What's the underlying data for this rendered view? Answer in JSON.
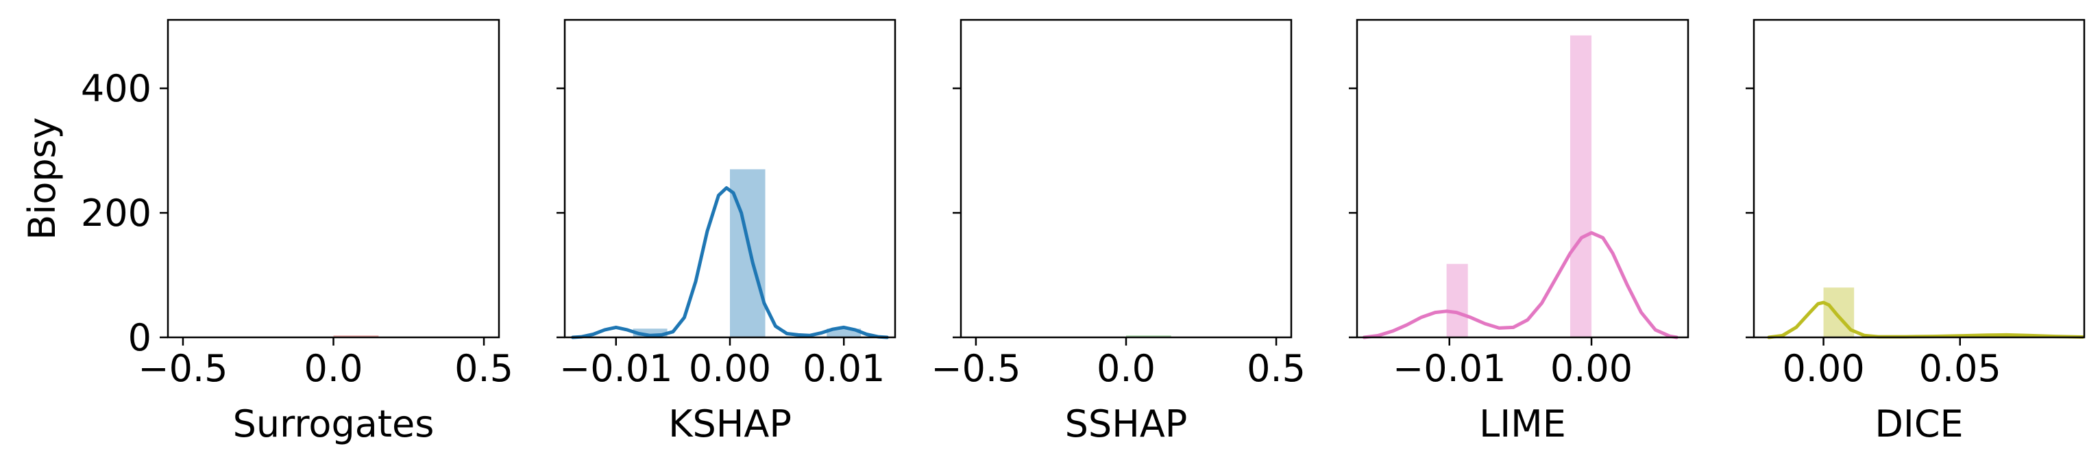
{
  "chart_data": [
    {
      "type": "histogram",
      "xlabel": "Surrogates",
      "ylabel": "Biopsy",
      "xlim": [
        -0.55,
        0.55
      ],
      "ylim": [
        0,
        510
      ],
      "xticks": [
        -0.5,
        0.0,
        0.5
      ],
      "xtick_labels": [
        "−0.5",
        "0.0",
        "0.5"
      ],
      "yticks": [
        0,
        200,
        400
      ],
      "ytick_labels": [
        "0",
        "200",
        "400"
      ],
      "color": "#d62728",
      "bars": [
        {
          "x0": 0.0,
          "x1": 0.15,
          "count": 3
        }
      ],
      "kde": []
    },
    {
      "type": "histogram",
      "xlabel": "KSHAP",
      "ylabel": "",
      "xlim": [
        -0.0145,
        0.0145
      ],
      "ylim": [
        0,
        510
      ],
      "xticks": [
        -0.01,
        0.0,
        0.01
      ],
      "xtick_labels": [
        "−0.01",
        "0.00",
        "0.01"
      ],
      "yticks": [
        0,
        200,
        400
      ],
      "ytick_labels": [
        "",
        "",
        ""
      ],
      "color": "#1f77b4",
      "bars": [
        {
          "x0": -0.0085,
          "x1": -0.0055,
          "count": 14
        },
        {
          "x0": 0.0,
          "x1": 0.0031,
          "count": 270
        },
        {
          "x0": 0.0085,
          "x1": 0.0115,
          "count": 14
        }
      ],
      "kde": [
        [
          -0.0138,
          0
        ],
        [
          -0.013,
          1
        ],
        [
          -0.012,
          5
        ],
        [
          -0.011,
          12
        ],
        [
          -0.01,
          16
        ],
        [
          -0.009,
          12
        ],
        [
          -0.008,
          6
        ],
        [
          -0.007,
          3
        ],
        [
          -0.006,
          4
        ],
        [
          -0.005,
          9
        ],
        [
          -0.004,
          32
        ],
        [
          -0.003,
          90
        ],
        [
          -0.002,
          170
        ],
        [
          -0.001,
          228
        ],
        [
          -0.0003,
          240
        ],
        [
          0.0003,
          232
        ],
        [
          0.001,
          200
        ],
        [
          0.002,
          120
        ],
        [
          0.003,
          55
        ],
        [
          0.004,
          18
        ],
        [
          0.005,
          6
        ],
        [
          0.006,
          4
        ],
        [
          0.007,
          3
        ],
        [
          0.008,
          7
        ],
        [
          0.009,
          13
        ],
        [
          0.01,
          16
        ],
        [
          0.011,
          12
        ],
        [
          0.012,
          5
        ],
        [
          0.013,
          1
        ],
        [
          0.0138,
          0
        ]
      ]
    },
    {
      "type": "histogram",
      "xlabel": "SSHAP",
      "ylabel": "",
      "xlim": [
        -0.55,
        0.55
      ],
      "ylim": [
        0,
        510
      ],
      "xticks": [
        -0.5,
        0.0,
        0.5
      ],
      "xtick_labels": [
        "−0.5",
        "0.0",
        "0.5"
      ],
      "yticks": [
        0,
        200,
        400
      ],
      "ytick_labels": [
        "",
        "",
        ""
      ],
      "color": "#2ca02c",
      "bars": [
        {
          "x0": 0.0,
          "x1": 0.15,
          "count": 3
        }
      ],
      "kde": []
    },
    {
      "type": "histogram",
      "xlabel": "LIME",
      "ylabel": "",
      "xlim": [
        -0.0165,
        0.0068
      ],
      "ylim": [
        0,
        510
      ],
      "xticks": [
        -0.01,
        0.0
      ],
      "xtick_labels": [
        "−0.01",
        "0.00"
      ],
      "yticks": [
        0,
        200,
        400
      ],
      "ytick_labels": [
        "",
        "",
        ""
      ],
      "color": "#e377c2",
      "bars": [
        {
          "x0": -0.0102,
          "x1": -0.0087,
          "count": 118
        },
        {
          "x0": -0.0015,
          "x1": 0.0,
          "count": 485
        }
      ],
      "kde": [
        [
          -0.016,
          0
        ],
        [
          -0.015,
          3
        ],
        [
          -0.014,
          10
        ],
        [
          -0.013,
          20
        ],
        [
          -0.012,
          32
        ],
        [
          -0.011,
          40
        ],
        [
          -0.0102,
          42
        ],
        [
          -0.0095,
          40
        ],
        [
          -0.0085,
          32
        ],
        [
          -0.0075,
          22
        ],
        [
          -0.0065,
          15
        ],
        [
          -0.0055,
          16
        ],
        [
          -0.0045,
          28
        ],
        [
          -0.0035,
          55
        ],
        [
          -0.0025,
          95
        ],
        [
          -0.0015,
          135
        ],
        [
          -0.0007,
          160
        ],
        [
          0.0,
          168
        ],
        [
          0.0008,
          160
        ],
        [
          0.0015,
          135
        ],
        [
          0.0025,
          85
        ],
        [
          0.0035,
          40
        ],
        [
          0.0045,
          12
        ],
        [
          0.0055,
          2
        ],
        [
          0.006,
          0
        ]
      ]
    },
    {
      "type": "histogram",
      "xlabel": "DICE",
      "ylabel": "",
      "xlim": [
        -0.0255,
        0.0955
      ],
      "ylim": [
        0,
        510
      ],
      "xticks": [
        0.0,
        0.05
      ],
      "xtick_labels": [
        "0.00",
        "0.05"
      ],
      "yticks": [
        0,
        200,
        400
      ],
      "ytick_labels": [
        "",
        "",
        ""
      ],
      "color": "#bcbd22",
      "bars": [
        {
          "x0": 0.0,
          "x1": 0.0112,
          "count": 80
        },
        {
          "x0": 0.0671,
          "x1": 0.0783,
          "count": 1
        }
      ],
      "kde": [
        [
          -0.02,
          0
        ],
        [
          -0.015,
          3
        ],
        [
          -0.01,
          16
        ],
        [
          -0.005,
          40
        ],
        [
          -0.002,
          54
        ],
        [
          0.0,
          56
        ],
        [
          0.002,
          52
        ],
        [
          0.005,
          36
        ],
        [
          0.01,
          12
        ],
        [
          0.015,
          3
        ],
        [
          0.02,
          1
        ],
        [
          0.03,
          1
        ],
        [
          0.04,
          1.5
        ],
        [
          0.05,
          2.5
        ],
        [
          0.06,
          3.5
        ],
        [
          0.067,
          4
        ],
        [
          0.075,
          3
        ],
        [
          0.085,
          1.5
        ],
        [
          0.095,
          0.5
        ]
      ]
    }
  ]
}
